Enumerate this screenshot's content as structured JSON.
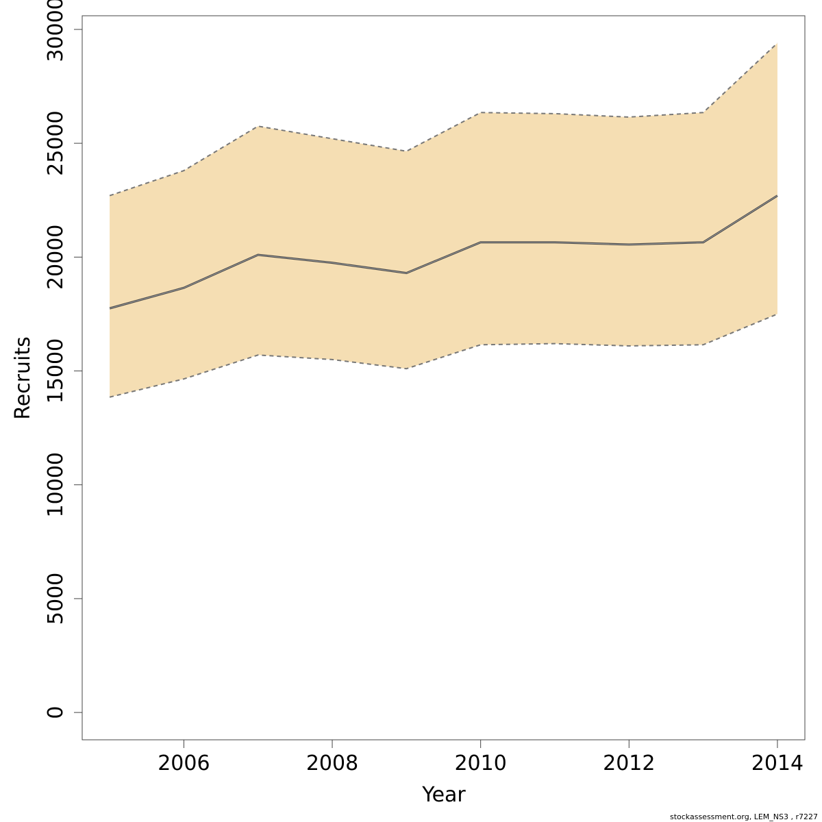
{
  "chart_data": {
    "type": "area",
    "xlabel": "Year",
    "ylabel": "Recruits",
    "xlim": [
      2004.63,
      2014.37
    ],
    "ylim": [
      -1200,
      30600
    ],
    "x_ticks": [
      2006,
      2008,
      2010,
      2012,
      2014
    ],
    "y_ticks": [
      0,
      5000,
      10000,
      15000,
      20000,
      25000,
      30000
    ],
    "x": [
      2005,
      2006,
      2007,
      2008,
      2009,
      2010,
      2011,
      2012,
      2013,
      2014
    ],
    "series": [
      {
        "role": "estimate",
        "values": [
          17750,
          18650,
          20100,
          19750,
          19300,
          20650,
          20650,
          20550,
          20650,
          22700
        ]
      },
      {
        "role": "lower",
        "values": [
          13850,
          14650,
          15700,
          15500,
          15100,
          16150,
          16200,
          16100,
          16150,
          17500
        ]
      },
      {
        "role": "upper",
        "values": [
          22700,
          23800,
          25750,
          25200,
          24650,
          26350,
          26300,
          26150,
          26350,
          29400
        ]
      }
    ],
    "band_color": "#f5deb3",
    "line_color": "#444444",
    "bound_line_color": "#777777",
    "grid": false,
    "legend": "none"
  },
  "footnote": "stockassessment.org, LEM_NS3 , r7227"
}
